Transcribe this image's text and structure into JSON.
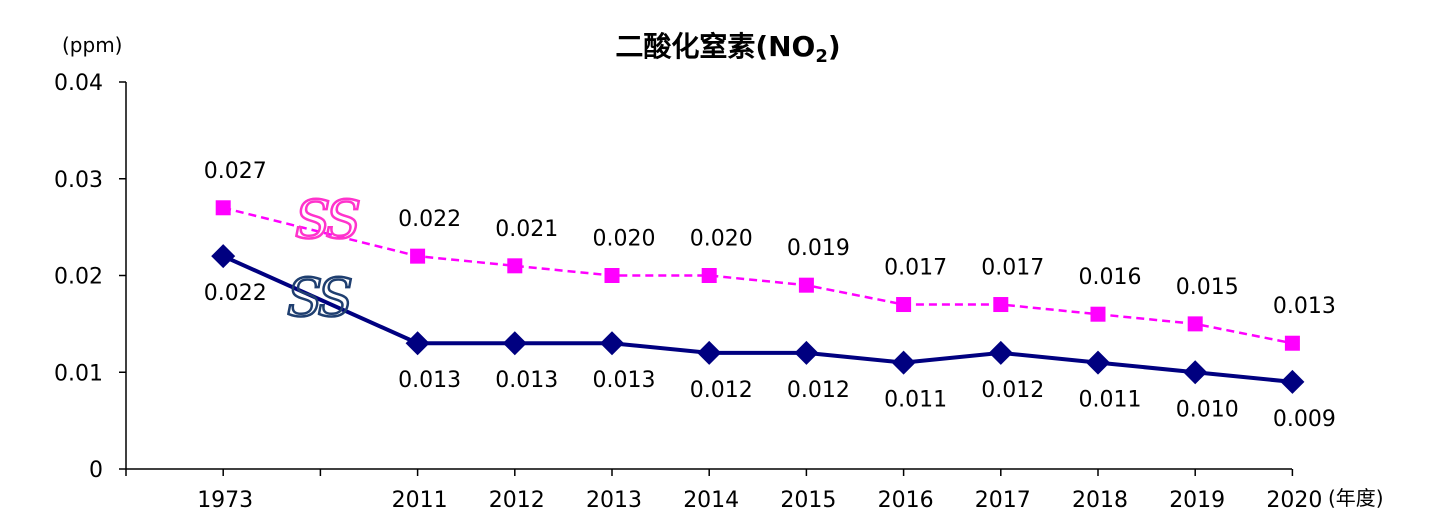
{
  "chart_data": {
    "type": "line",
    "title": "二酸化窒素(NO",
    "title_sub": "2",
    "title_close": ")",
    "ylabel": "(ppm)",
    "xlabel": "(年度)",
    "ylim": [
      0,
      0.04
    ],
    "yticks": [
      "0",
      "0.01",
      "0.02",
      "0.03",
      "0.04"
    ],
    "ytick_values": [
      0,
      0.01,
      0.02,
      0.03,
      0.04
    ],
    "categories": [
      "1973",
      "",
      "2011",
      "2012",
      "2013",
      "2014",
      "2015",
      "2016",
      "2017",
      "2018",
      "2019",
      "2020"
    ],
    "grid": false,
    "series": [
      {
        "marker_label": "SS",
        "color": "#ff00ff",
        "line_style": "dashed",
        "marker": "square",
        "values": [
          0.027,
          null,
          0.022,
          0.021,
          0.02,
          0.02,
          0.019,
          0.017,
          0.017,
          0.016,
          0.015,
          0.013
        ],
        "labels": [
          "0.027",
          "",
          "0.022",
          "0.021",
          "0.020",
          "0.020",
          "0.019",
          "0.017",
          "0.017",
          "0.016",
          "0.015",
          "0.013"
        ]
      },
      {
        "marker_label": "SS",
        "color": "#000080",
        "line_style": "solid",
        "marker": "diamond",
        "values": [
          0.022,
          null,
          0.013,
          0.013,
          0.013,
          0.012,
          0.012,
          0.011,
          0.012,
          0.011,
          0.01,
          0.009
        ],
        "labels": [
          "0.022",
          "",
          "0.013",
          "0.013",
          "0.013",
          "0.012",
          "0.012",
          "0.011",
          "0.012",
          "0.011",
          "0.010",
          "0.009"
        ]
      }
    ]
  }
}
